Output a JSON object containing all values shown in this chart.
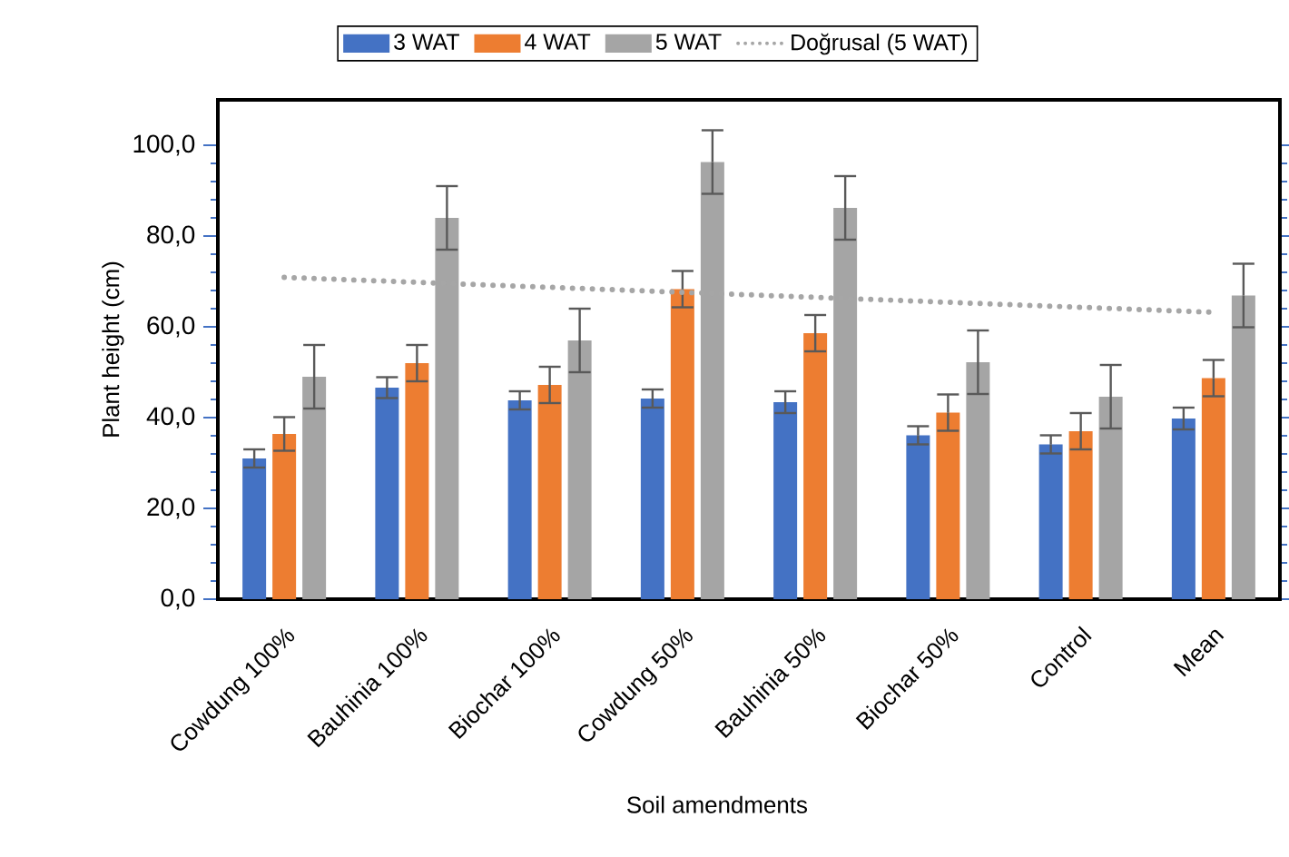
{
  "chart_data": {
    "type": "bar",
    "xlabel": "Soil amendments",
    "ylabel": "Plant height (cm)",
    "categories": [
      "Cowdung 100%",
      "Bauhinia 100%",
      "Biochar 100%",
      "Cowdung 50%",
      "Bauhinia 50%",
      "Biochar 50%",
      "Control",
      "Mean"
    ],
    "series": [
      {
        "name": "3 WAT",
        "color": "#4472c4",
        "values": [
          31,
          46.6,
          43.8,
          44.2,
          43.4,
          36.1,
          34.1,
          39.8
        ],
        "errors": [
          2,
          2.3,
          2,
          2,
          2.4,
          2,
          2,
          2.4
        ]
      },
      {
        "name": "4 WAT",
        "color": "#ed7d31",
        "values": [
          36.4,
          52,
          47.2,
          68.3,
          58.6,
          41.1,
          37,
          48.7
        ],
        "errors": [
          3.7,
          4,
          4,
          4,
          4,
          4,
          4,
          4
        ]
      },
      {
        "name": "5 WAT",
        "color": "#a5a5a5",
        "values": [
          49,
          84,
          57,
          96.3,
          86.2,
          52.2,
          44.6,
          66.9
        ],
        "errors": [
          7,
          7,
          7,
          7,
          7,
          7,
          7,
          7
        ]
      },
      {
        "name": "Doğrusal (5 WAT)",
        "type": "line",
        "color": "#a6a6a6",
        "line_style": "dotted",
        "marker": "none",
        "values": [
          70.9,
          69.8,
          68.7,
          67.6,
          66.5,
          65.4,
          64.3,
          63.2
        ]
      }
    ],
    "ylim": [
      0,
      110
    ],
    "yticks": [
      {
        "value": 0,
        "label": "0,0"
      },
      {
        "value": 20,
        "label": "20,0"
      },
      {
        "value": 40,
        "label": "40,0"
      },
      {
        "value": 60,
        "label": "60,0"
      },
      {
        "value": 80,
        "label": "80,0"
      },
      {
        "value": 100,
        "label": "100,0"
      }
    ],
    "legend": "top"
  }
}
